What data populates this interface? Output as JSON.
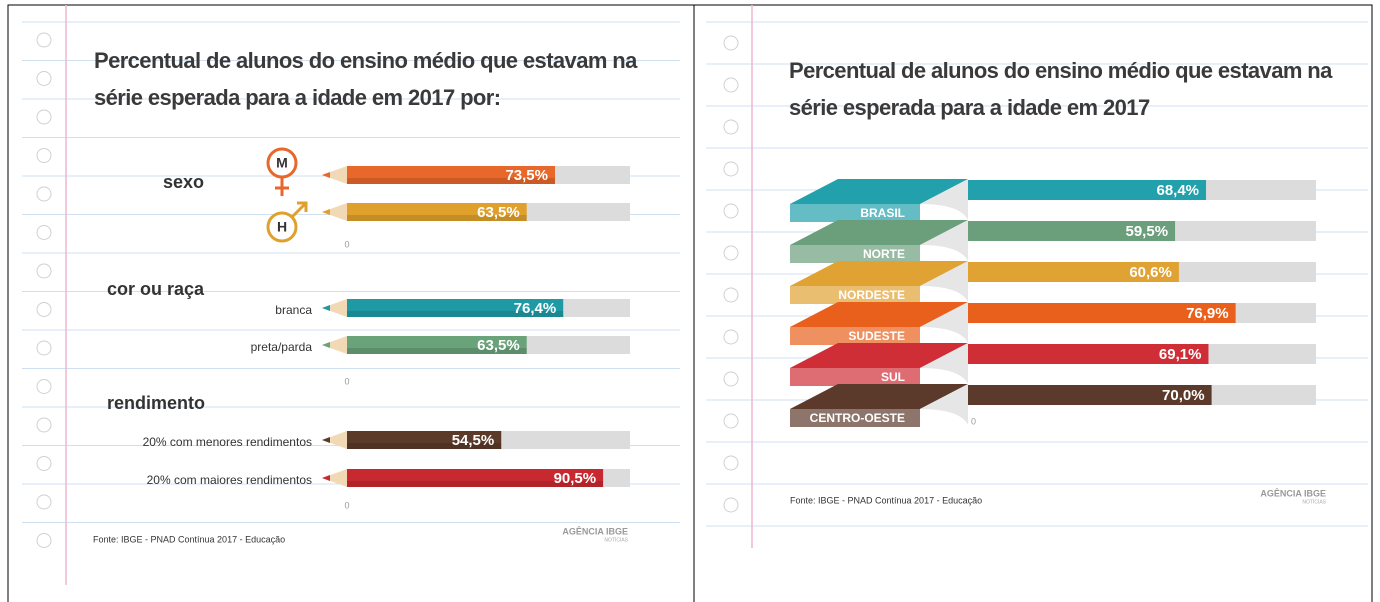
{
  "chart_data": [
    {
      "type": "pencil-bar",
      "title": "Percentual de alunos do ensino médio que estavam na série esperada para a idade em 2017 por:",
      "xlim": [
        0,
        100
      ],
      "groups": [
        {
          "name": "sexo",
          "categories": [
            "M",
            "H"
          ],
          "values": [
            73.5,
            63.5
          ],
          "value_labels": [
            "73,5%",
            "63,5%"
          ],
          "colors": [
            "#e8672a",
            "#e0a12c"
          ],
          "xticks": [
            0
          ]
        },
        {
          "name": "cor ou raça",
          "categories": [
            "branca",
            "preta/parda"
          ],
          "values": [
            76.4,
            63.5
          ],
          "value_labels": [
            "76,4%",
            "63,5%"
          ],
          "colors": [
            "#1f9aa5",
            "#6aa27a"
          ],
          "xticks": [
            0
          ]
        },
        {
          "name": "rendimento",
          "categories": [
            "20% com menores rendimentos",
            "20% com maiores rendimentos"
          ],
          "values": [
            54.5,
            90.5
          ],
          "value_labels": [
            "54,5%",
            "90,5%"
          ],
          "colors": [
            "#5c3a2a",
            "#c8282f"
          ],
          "xticks": [
            0
          ]
        }
      ],
      "source": "Fonte: IBGE - PNAD Contínua 2017 - Educação",
      "logo": "AGÊNCIA IBGE",
      "logo_sub": "NOTÍCIAS"
    },
    {
      "type": "ribbon-bar",
      "title": "Percentual de alunos do ensino médio que estavam na série esperada para a idade em 2017",
      "xlim": [
        0,
        100
      ],
      "xticks": [
        0
      ],
      "categories": [
        "BRASIL",
        "NORTE",
        "NORDESTE",
        "SUDESTE",
        "SUL",
        "CENTRO-OESTE"
      ],
      "values": [
        68.4,
        59.5,
        60.6,
        76.9,
        69.1,
        70.0
      ],
      "value_labels": [
        "68,4%",
        "59,5%",
        "60,6%",
        "76,9%",
        "69,1%",
        "70,0%"
      ],
      "colors": [
        "#22a0ab",
        "#6b9f7c",
        "#e0a233",
        "#e8601c",
        "#cf2e37",
        "#5c3a2b"
      ],
      "source": "Fonte: IBGE - PNAD Contínua 2017 - Educação",
      "logo": "AGÊNCIA IBGE",
      "logo_sub": "NOTÍCIAS"
    }
  ]
}
